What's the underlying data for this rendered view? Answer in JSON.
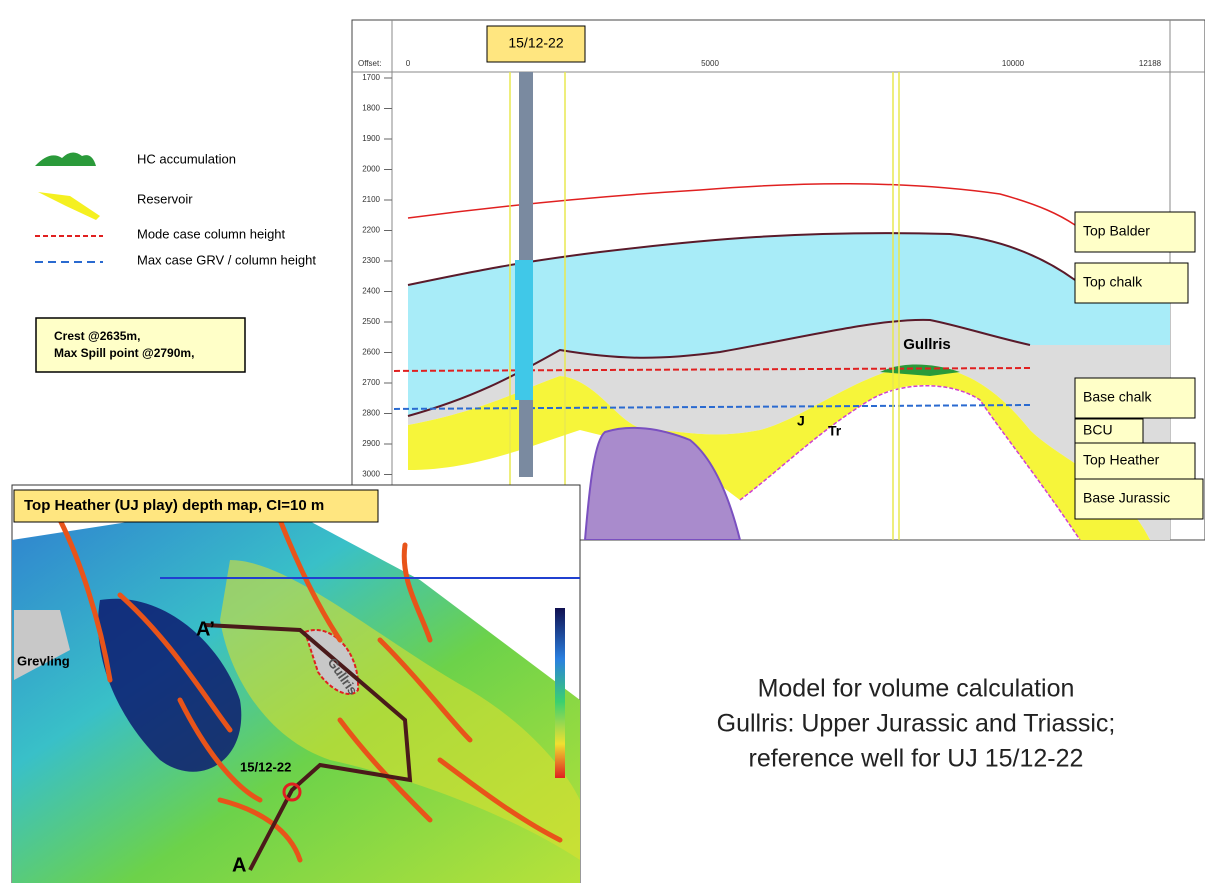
{
  "legend": {
    "items": [
      "HC accumulation",
      "Reservoir",
      "Mode case column height",
      "Max case GRV / column height"
    ]
  },
  "note": {
    "lines": [
      "Crest @2635m,",
      "Max Spill point @2790m,"
    ]
  },
  "section": {
    "well": "15/12-22",
    "offset_label": "Offset:",
    "offset_ticks": [
      "0",
      "5000",
      "10000",
      "12188"
    ],
    "depth_ticks": [
      "1700",
      "1800",
      "1900",
      "2000",
      "2100",
      "2200",
      "2300",
      "2400",
      "2500",
      "2600",
      "2700",
      "2800",
      "2900",
      "3000"
    ],
    "horizons": [
      "Top Balder",
      "Top chalk",
      "Base chalk",
      "BCU",
      "Top Heather",
      "Base Jurassic"
    ],
    "labels": {
      "gullris": "Gullris",
      "j": "J",
      "tr": "Tr"
    }
  },
  "map": {
    "title": "Top Heather (UJ play) depth map, CI=10 m",
    "labels": [
      "A’",
      "A",
      "Grevling",
      "Gullris",
      "15/12-22"
    ]
  },
  "caption": {
    "lines": [
      "Model for volume calculation",
      "Gullris:  Upper Jurassic and Triassic;",
      "reference  well for UJ  15/12-22"
    ]
  }
}
